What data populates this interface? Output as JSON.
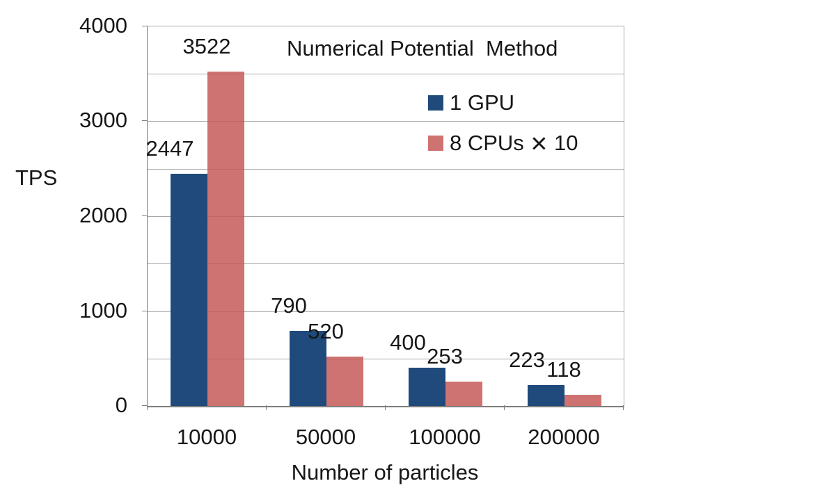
{
  "chart_data": {
    "type": "bar",
    "title": "Numerical Potential  Method",
    "xlabel": "Number of particles",
    "ylabel": "TPS",
    "categories": [
      "10000",
      "50000",
      "100000",
      "200000"
    ],
    "series": [
      {
        "name": "1 GPU",
        "color": "#1F4A7B",
        "values": [
          2447,
          790,
          400,
          223
        ]
      },
      {
        "name": "8 CPUs × 10",
        "color": "#C55A58",
        "values": [
          3522,
          520,
          253,
          118
        ]
      }
    ],
    "ylim": [
      0,
      4000
    ],
    "ytick_labels": [
      "0",
      "1000",
      "2000",
      "3000",
      "4000"
    ],
    "ytick_interval": 1000,
    "gridline_interval": 500,
    "grid": true,
    "legend_position": "inside-top-right",
    "data_labels": "outside-end"
  },
  "colors": {
    "gridline": "#A8A8A8",
    "axis": "#7F7F7F",
    "text": "#171717",
    "background": "#FFFFFF"
  }
}
